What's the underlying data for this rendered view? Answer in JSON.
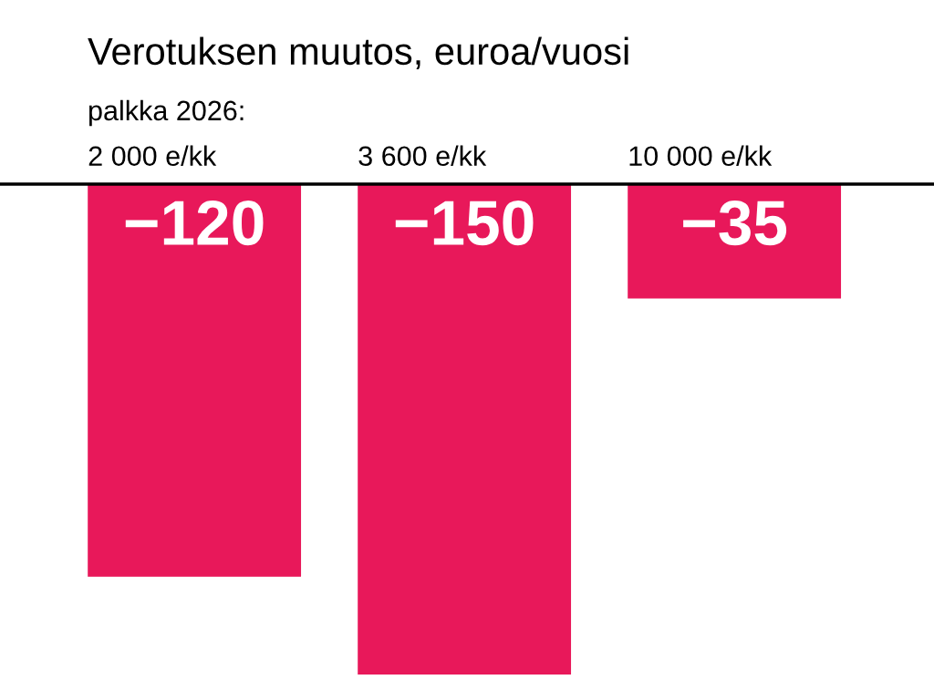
{
  "chart_data": {
    "type": "bar",
    "title": "Verotuksen muutos, euroa/vuosi",
    "subtitle": "palkka 2026:",
    "categories": [
      "2 000 e/kk",
      "3 600 e/kk",
      "10 000 e/kk"
    ],
    "values": [
      -120,
      -150,
      -35
    ],
    "color": "#e8185a",
    "data_labels": true,
    "grid": false,
    "legend": false
  }
}
